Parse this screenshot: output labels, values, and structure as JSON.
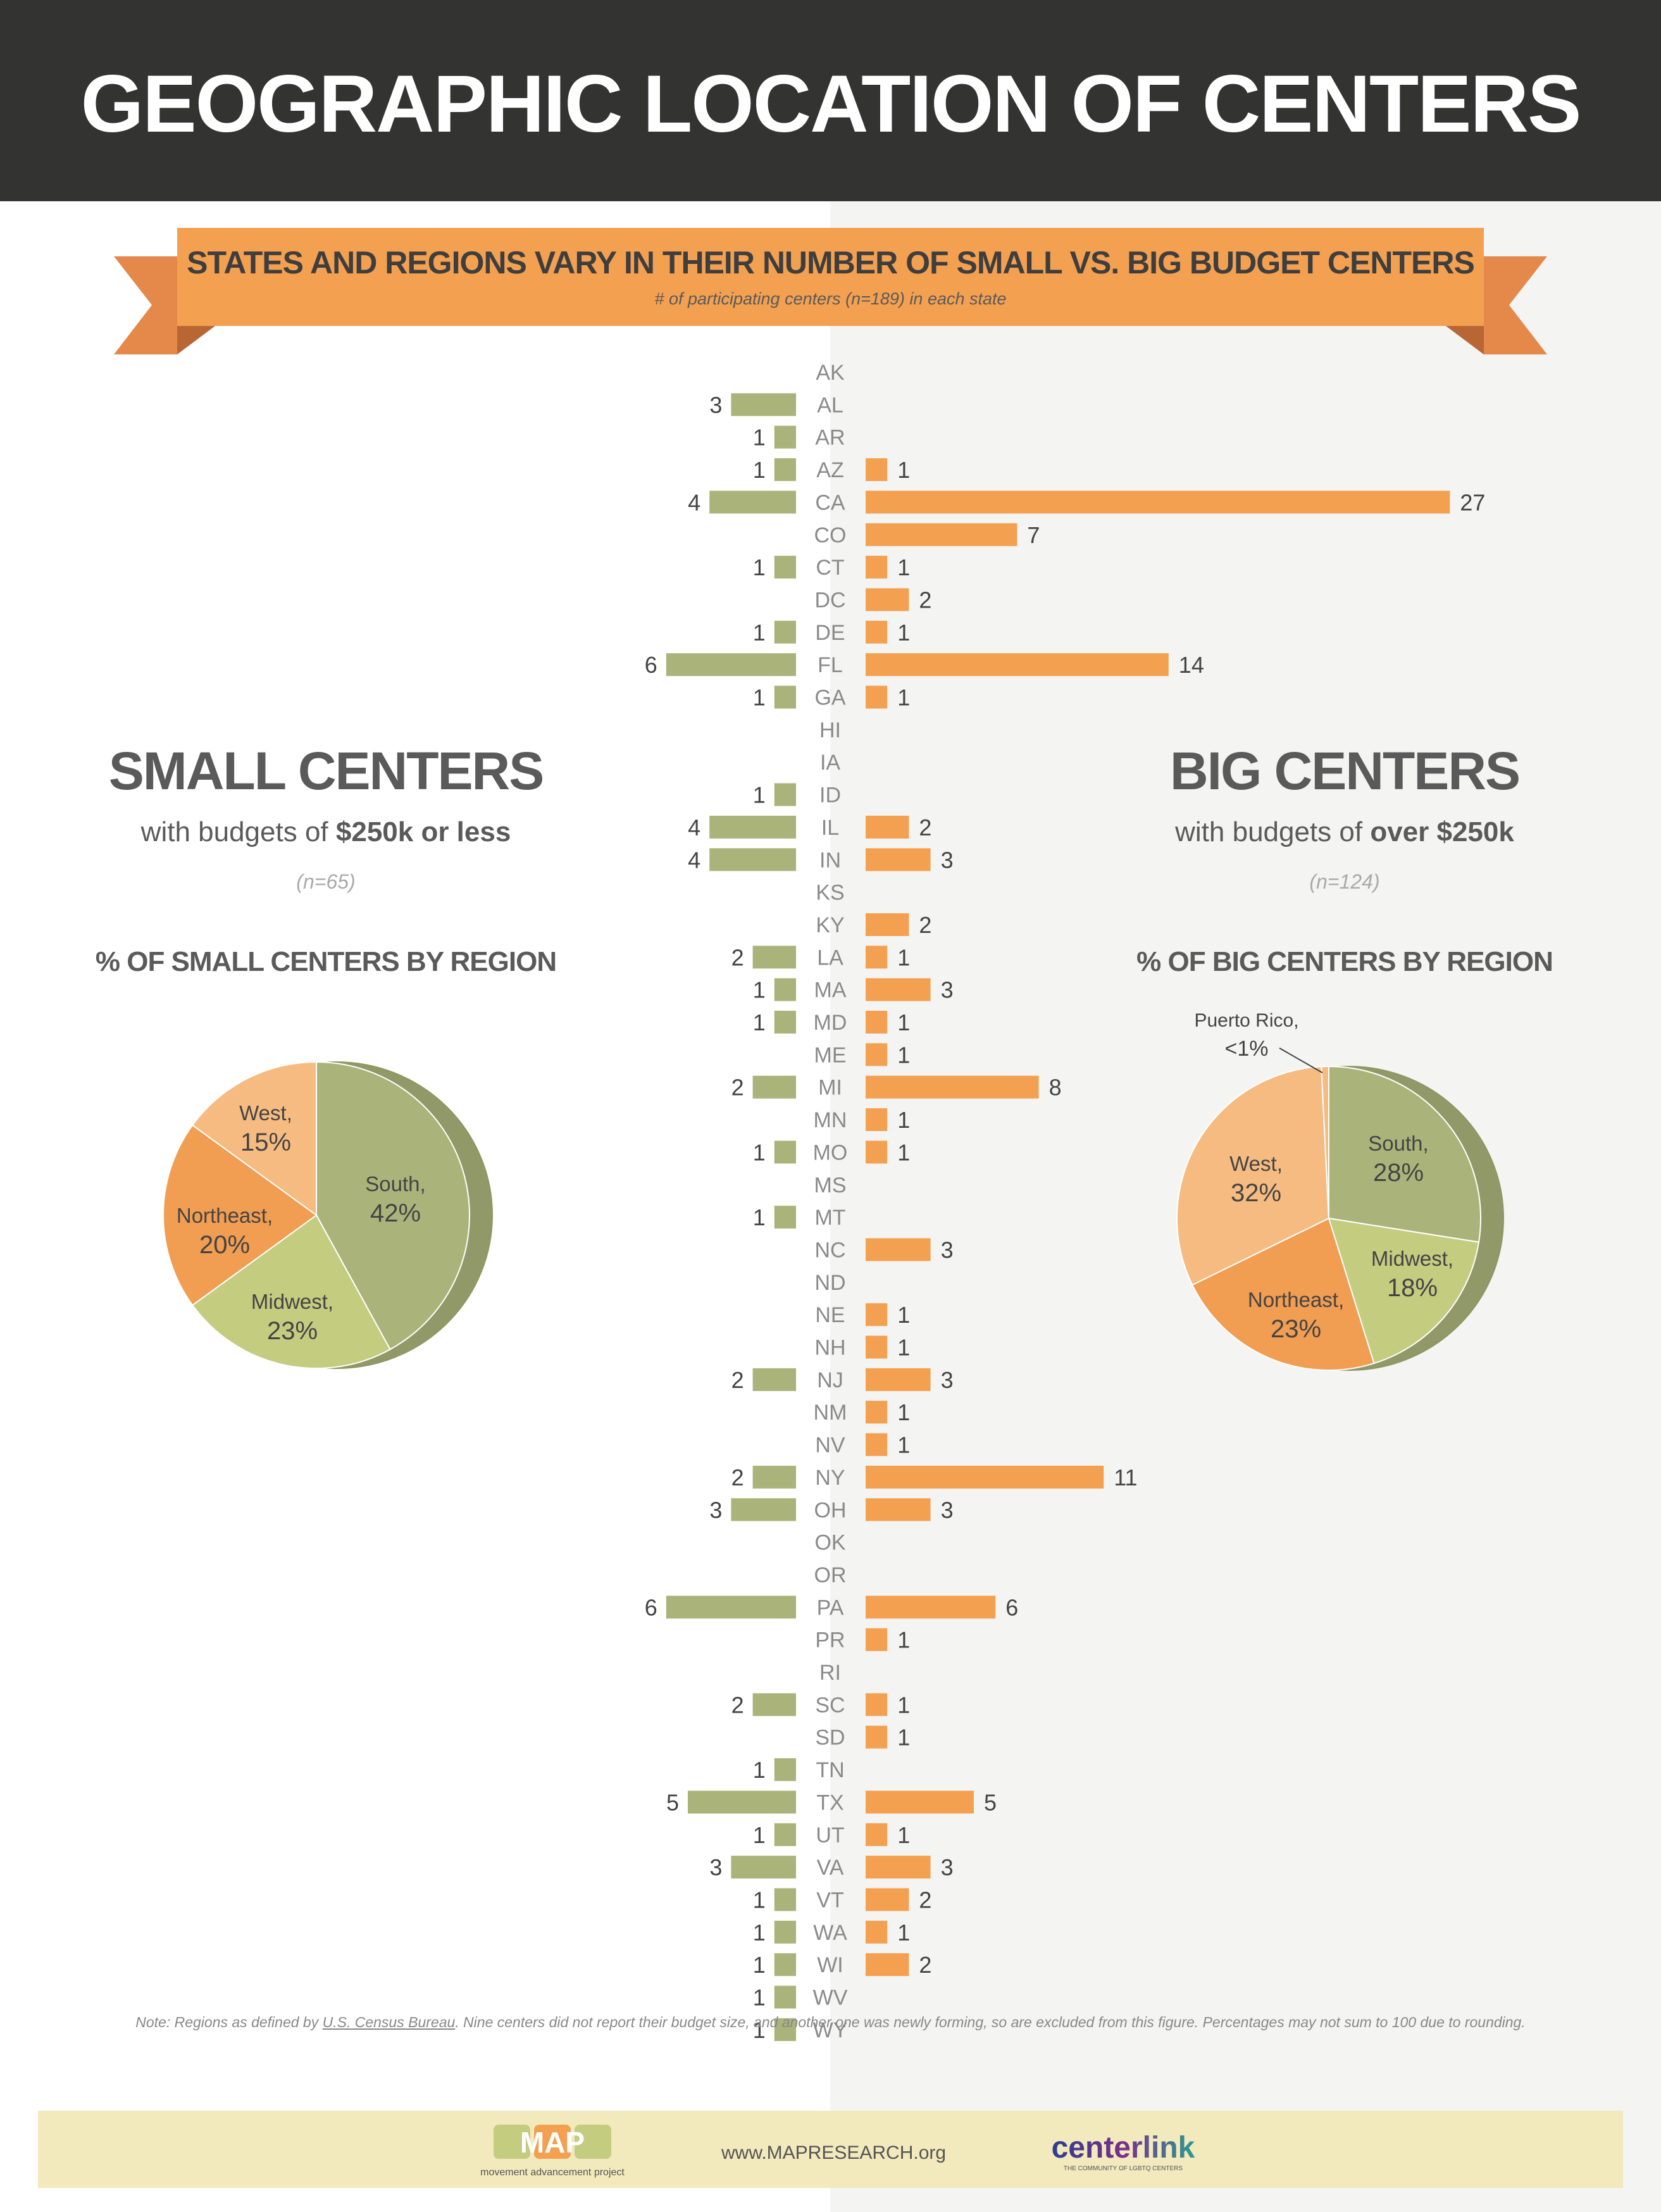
{
  "title": "GEOGRAPHIC LOCATION OF CENTERS",
  "ribbon": {
    "title": "STATES AND REGIONS VARY IN THEIR NUMBER OF SMALL VS. BIG BUDGET CENTERS",
    "subtitle": "# of participating centers (n=189) in each state"
  },
  "small": {
    "title": "SMALL CENTERS",
    "sub_prefix": "with budgets of ",
    "sub_bold": "$250k or less",
    "n": "(n=65)",
    "pie_title": "% OF SMALL CENTERS BY REGION"
  },
  "big": {
    "title": "BIG CENTERS",
    "sub_prefix": "with budgets of ",
    "sub_bold": "over $250k",
    "n": "(n=124)",
    "pie_title": "% OF BIG CENTERS BY REGION"
  },
  "colors": {
    "small_bar": "#aab47a",
    "big_bar": "#f4a051",
    "south": "#aab47a",
    "midwest": "#c4cc80",
    "northeast": "#f19d52",
    "west": "#f6bb81"
  },
  "chart_data": [
    {
      "type": "bar",
      "categories": [
        "AK",
        "AL",
        "AR",
        "AZ",
        "CA",
        "CO",
        "CT",
        "DC",
        "DE",
        "FL",
        "GA",
        "HI",
        "IA",
        "ID",
        "IL",
        "IN",
        "KS",
        "KY",
        "LA",
        "MA",
        "MD",
        "ME",
        "MI",
        "MN",
        "MO",
        "MS",
        "MT",
        "NC",
        "ND",
        "NE",
        "NH",
        "NJ",
        "NM",
        "NV",
        "NY",
        "OH",
        "OK",
        "OR",
        "PA",
        "PR",
        "RI",
        "SC",
        "SD",
        "TN",
        "TX",
        "UT",
        "VA",
        "VT",
        "WA",
        "WI",
        "WV",
        "WY"
      ],
      "series": [
        {
          "name": "SMALL CENTERS",
          "values": [
            0,
            3,
            1,
            1,
            4,
            0,
            1,
            0,
            1,
            6,
            1,
            0,
            0,
            1,
            4,
            4,
            0,
            0,
            2,
            1,
            1,
            0,
            2,
            0,
            1,
            0,
            1,
            0,
            0,
            0,
            0,
            2,
            0,
            0,
            2,
            3,
            0,
            0,
            6,
            0,
            0,
            2,
            0,
            1,
            5,
            1,
            3,
            1,
            1,
            1,
            1,
            1
          ]
        },
        {
          "name": "BIG CENTERS",
          "values": [
            0,
            0,
            0,
            1,
            27,
            7,
            1,
            2,
            1,
            14,
            1,
            0,
            0,
            0,
            2,
            3,
            0,
            2,
            1,
            3,
            1,
            1,
            8,
            1,
            1,
            0,
            0,
            3,
            0,
            1,
            1,
            3,
            1,
            1,
            11,
            3,
            0,
            0,
            6,
            1,
            0,
            1,
            1,
            0,
            5,
            1,
            3,
            2,
            1,
            2,
            0,
            0
          ]
        }
      ]
    },
    {
      "type": "pie",
      "title": "% OF SMALL CENTERS BY REGION",
      "slices": [
        {
          "label": "South,",
          "value": 42,
          "display": "42%",
          "color": "#aab47a"
        },
        {
          "label": "Midwest,",
          "value": 23,
          "display": "23%",
          "color": "#c4cc80"
        },
        {
          "label": "Northeast,",
          "value": 20,
          "display": "20%",
          "color": "#f19d52"
        },
        {
          "label": "West,",
          "value": 15,
          "display": "15%",
          "color": "#f6bb81"
        }
      ]
    },
    {
      "type": "pie",
      "title": "% OF BIG CENTERS BY REGION",
      "slices": [
        {
          "label": "South,",
          "value": 28,
          "display": "28%",
          "color": "#aab47a"
        },
        {
          "label": "Midwest,",
          "value": 18,
          "display": "18%",
          "color": "#c4cc80"
        },
        {
          "label": "Northeast,",
          "value": 23,
          "display": "23%",
          "color": "#f19d52"
        },
        {
          "label": "West,",
          "value": 32,
          "display": "32%",
          "color": "#f6bb81"
        },
        {
          "label": "Puerto Rico,",
          "value": 0.8,
          "display": "<1%",
          "color": "#f6bb81"
        }
      ]
    }
  ],
  "note": {
    "prefix": "Note: Regions as defined by ",
    "link": "U.S. Census Bureau",
    "suffix": ". Nine centers did not report their budget size, and another one was newly forming, so are excluded from this figure. Percentages may not sum to 100 due to rounding."
  },
  "footer": {
    "map_logo": "MAP",
    "map_tagline": "movement advancement project",
    "url": "www.MAPRESEARCH.org",
    "centerlink": "centerlink",
    "centerlink_tagline": "THE COMMUNITY OF LGBTQ CENTERS"
  }
}
